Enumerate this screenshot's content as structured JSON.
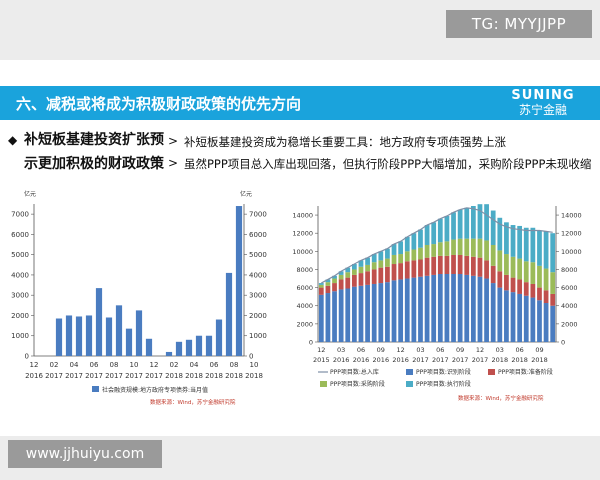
{
  "watermark_top": "TG: MYYJJPP",
  "watermark_bottom": "www.jjhuiyu.com",
  "header": {
    "title": "六、减税或将成为积极财政政策的优先方向",
    "brand_top": "SUNING",
    "brand_bottom": "苏宁金融"
  },
  "left_heading": "补短板基建投资扩张预示更加积极的财政政策",
  "points": [
    "补短板基建投资成为稳增长重要工具：地方政府专项债强势上涨",
    "虽然PPP项目总入库出现回落，但执行阶段PPP大幅增加，采购阶段PPP未现收缩"
  ],
  "colors": {
    "header": "#1aa3dc",
    "bar": "#4a7cc0",
    "ppp_identify": "#4a7cc0",
    "ppp_prepare": "#c0504d",
    "ppp_procure": "#9bbb59",
    "ppp_execute": "#4bacc6",
    "ppp_total": "#7f8fa6",
    "source": "#c0392b"
  },
  "chart_data": [
    {
      "type": "bar",
      "unit_left": "亿元",
      "unit_right": "亿元",
      "ylim": [
        0,
        7500
      ],
      "yticks": [
        0,
        1000,
        2000,
        3000,
        4000,
        5000,
        6000,
        7000
      ],
      "x_tick_month": [
        "12",
        "02",
        "04",
        "06",
        "08",
        "10",
        "12",
        "02",
        "04",
        "06",
        "08",
        "10"
      ],
      "x_tick_year": [
        "2016",
        "2017",
        "2017",
        "2017",
        "2017",
        "2017",
        "2017",
        "2018",
        "2018",
        "2018",
        "2018",
        "2018"
      ],
      "series": [
        {
          "name": "社会融资规模:地方政府专项债券:当月值",
          "values": [
            0,
            0,
            1850,
            2000,
            1950,
            2000,
            3350,
            1900,
            2500,
            1350,
            2250,
            850,
            0,
            200,
            700,
            800,
            1000,
            1000,
            1800,
            4100,
            7400
          ]
        }
      ],
      "source": "数据来源：Wind，苏宁金融研究院",
      "grid": false
    },
    {
      "type": "bar",
      "stacked": true,
      "unit_left": "",
      "unit_right": "",
      "ylim": [
        0,
        15000
      ],
      "yticks": [
        0,
        2000,
        4000,
        6000,
        8000,
        10000,
        12000,
        14000
      ],
      "x_tick_month": [
        "12",
        "03",
        "06",
        "09",
        "12",
        "03",
        "06",
        "09",
        "12",
        "03",
        "06",
        "09"
      ],
      "x_tick_year": [
        "2015",
        "2016",
        "2016",
        "2016",
        "2016",
        "2017",
        "2017",
        "2017",
        "2017",
        "2018",
        "2018",
        "2018"
      ],
      "series": [
        {
          "name": "PPP项目数:识别阶段",
          "values": [
            5200,
            5400,
            5600,
            5800,
            5900,
            6100,
            6200,
            6300,
            6400,
            6500,
            6600,
            6800,
            6900,
            7000,
            7100,
            7200,
            7300,
            7400,
            7500,
            7500,
            7500,
            7500,
            7400,
            7300,
            7200,
            7000,
            6500,
            6000,
            5700,
            5500,
            5300,
            5100,
            4900,
            4600,
            4300,
            4000
          ]
        },
        {
          "name": "PPP项目数:准备阶段",
          "values": [
            800,
            800,
            900,
            1100,
            1200,
            1300,
            1400,
            1500,
            1600,
            1700,
            1700,
            1800,
            1800,
            1900,
            1900,
            1900,
            2000,
            2000,
            2000,
            2000,
            2100,
            2100,
            2100,
            2100,
            2100,
            2000,
            1900,
            1800,
            1700,
            1600,
            1600,
            1500,
            1500,
            1400,
            1400,
            1300
          ]
        },
        {
          "name": "PPP项目数:采购阶段",
          "values": [
            300,
            400,
            500,
            500,
            600,
            600,
            700,
            700,
            800,
            800,
            900,
            1000,
            1000,
            1100,
            1200,
            1300,
            1400,
            1400,
            1500,
            1600,
            1700,
            1800,
            1900,
            2000,
            2100,
            2200,
            2300,
            2300,
            2300,
            2300,
            2300,
            2300,
            2400,
            2400,
            2400,
            2400
          ]
        },
        {
          "name": "PPP项目数:执行阶段",
          "values": [
            200,
            300,
            300,
            400,
            500,
            600,
            700,
            800,
            900,
            1000,
            1100,
            1200,
            1400,
            1600,
            1800,
            2000,
            2200,
            2400,
            2600,
            2800,
            3000,
            3200,
            3400,
            3600,
            3800,
            4000,
            3800,
            3600,
            3500,
            3500,
            3600,
            3700,
            3800,
            3900,
            4100,
            4300
          ]
        },
        {
          "name": "PPP项目数:总入库",
          "type": "line",
          "values": [
            6500,
            6900,
            7300,
            7800,
            8200,
            8600,
            9000,
            9300,
            9700,
            10000,
            10300,
            10800,
            11100,
            11600,
            12000,
            12400,
            12900,
            13200,
            13600,
            13900,
            14300,
            14600,
            14800,
            14700,
            14500,
            14000,
            13500,
            13000,
            12700,
            12500,
            12400,
            12300,
            12300,
            12300,
            12200,
            12100
          ]
        }
      ],
      "source": "数据来源：Wind，苏宁金融研究院",
      "grid": false
    }
  ]
}
